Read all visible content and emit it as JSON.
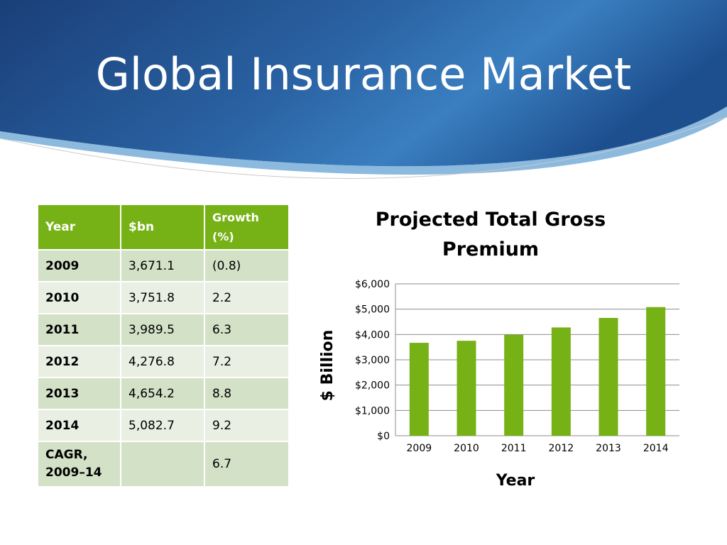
{
  "slide": {
    "title": "Global Insurance Market"
  },
  "colors": {
    "header_blue": "#1f4e8c",
    "accent_green": "#76b116",
    "row_odd": "#d3e1c7",
    "row_even": "#e9efe3"
  },
  "table": {
    "headers": [
      "Year",
      "$bn",
      "Growth (%)"
    ],
    "rows": [
      [
        "2009",
        "3,671.1",
        "(0.8)"
      ],
      [
        "2010",
        "3,751.8",
        "2.2"
      ],
      [
        "2011",
        "3,989.5",
        "6.3"
      ],
      [
        "2012",
        "4,276.8",
        "7.2"
      ],
      [
        "2013",
        "4,654.2",
        "8.8"
      ],
      [
        "2014",
        "5,082.7",
        "9.2"
      ],
      [
        "CAGR, 2009–14",
        "",
        "6.7"
      ]
    ]
  },
  "chart_data": {
    "type": "bar",
    "title": "Projected Total Gross Premium",
    "xlabel": "Year",
    "ylabel": "$ Billion",
    "categories": [
      "2009",
      "2010",
      "2011",
      "2012",
      "2013",
      "2014"
    ],
    "values": [
      3671.1,
      3751.8,
      3989.5,
      4276.8,
      4654.2,
      5082.7
    ],
    "ylim": [
      0,
      6000
    ],
    "yticks": [
      "$0",
      "$1,000",
      "$2,000",
      "$3,000",
      "$4,000",
      "$5,000",
      "$6,000"
    ],
    "grid": true,
    "legend": "none",
    "bar_color": "#76b116"
  }
}
